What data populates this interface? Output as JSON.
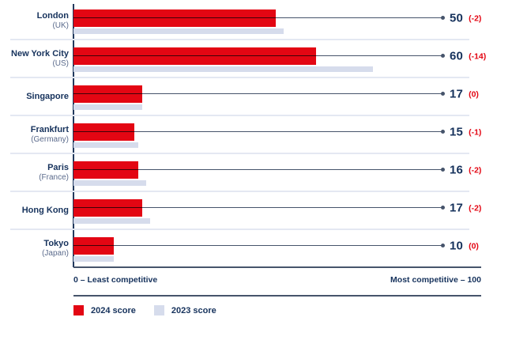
{
  "chart_data": {
    "type": "bar",
    "orientation": "horizontal",
    "xlim": [
      0,
      100
    ],
    "axis_note_left": "0 – Least competitive",
    "axis_note_right": "Most competitive – 100",
    "legend": [
      {
        "label": "2024 score",
        "color": "#e30613"
      },
      {
        "label": "2023 score",
        "color": "#d6dcec"
      }
    ],
    "colors": {
      "bar_2024": "#e30613",
      "bar_2023": "#d6dcec",
      "navy_text": "#16325c",
      "muted_text": "#5b6b8c",
      "line": "#46546b",
      "separator": "#e4e8f2"
    },
    "rows": [
      {
        "city": "London",
        "country": "(UK)",
        "score_2024": 50,
        "score_2023": 52,
        "score_label": "50",
        "change_label": "(-2)"
      },
      {
        "city": "New York City",
        "country": "(US)",
        "score_2024": 60,
        "score_2023": 74,
        "score_label": "60",
        "change_label": "(-14)"
      },
      {
        "city": "Singapore",
        "country": "",
        "score_2024": 17,
        "score_2023": 17,
        "score_label": "17",
        "change_label": "(0)"
      },
      {
        "city": "Frankfurt",
        "country": "(Germany)",
        "score_2024": 15,
        "score_2023": 16,
        "score_label": "15",
        "change_label": "(-1)"
      },
      {
        "city": "Paris",
        "country": "(France)",
        "score_2024": 16,
        "score_2023": 18,
        "score_label": "16",
        "change_label": "(-2)"
      },
      {
        "city": "Hong Kong",
        "country": "",
        "score_2024": 17,
        "score_2023": 19,
        "score_label": "17",
        "change_label": "(-2)"
      },
      {
        "city": "Tokyo",
        "country": "(Japan)",
        "score_2024": 10,
        "score_2023": 10,
        "score_label": "10",
        "change_label": "(0)"
      }
    ]
  }
}
